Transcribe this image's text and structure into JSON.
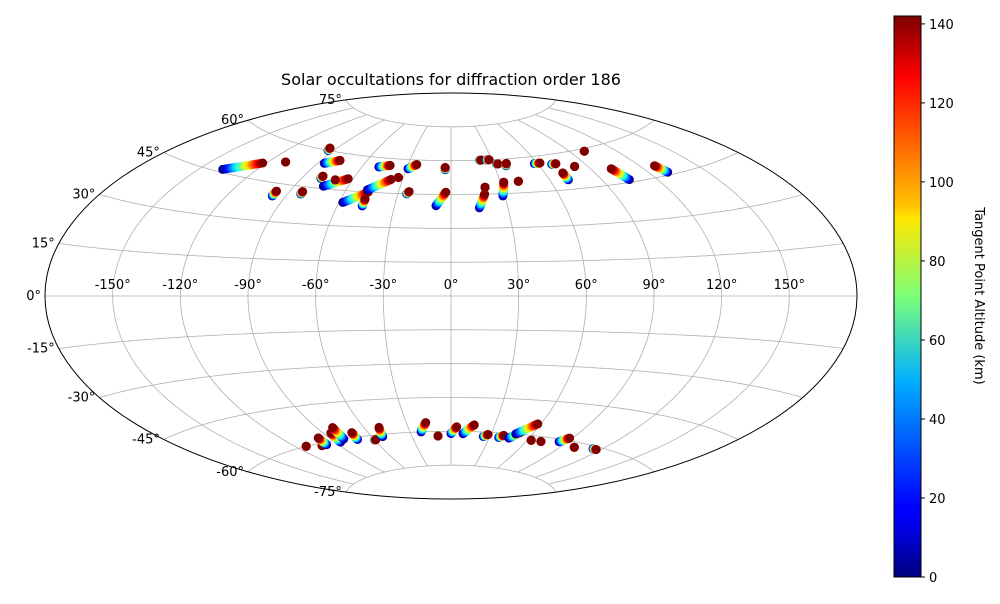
{
  "chart_data": {
    "type": "scatter",
    "title": "Solar occultations for diffraction order 186",
    "projection": "aitoff",
    "lon_tick_labels": [
      "-150°",
      "-120°",
      "-90°",
      "-60°",
      "-30°",
      "0°",
      "30°",
      "60°",
      "90°",
      "120°",
      "150°"
    ],
    "lon_ticks": [
      -150,
      -120,
      -90,
      -60,
      -30,
      0,
      30,
      60,
      90,
      120,
      150
    ],
    "lat_tick_labels": [
      "75°",
      "60°",
      "45°",
      "30°",
      "15°",
      "0°",
      "-15°",
      "-30°",
      "-45°",
      "-60°",
      "-75°"
    ],
    "lat_ticks": [
      75,
      60,
      45,
      30,
      15,
      0,
      -15,
      -30,
      -45,
      -60,
      -75
    ],
    "xlim": [
      -180,
      180
    ],
    "ylim": [
      -90,
      90
    ],
    "grid": true,
    "colorbar": {
      "label": "Tangent Point Altitude (km)",
      "range": [
        0,
        142
      ],
      "tick_values": [
        0,
        20,
        40,
        60,
        80,
        100,
        120,
        140
      ],
      "tick_labels": [
        "0",
        "20",
        "40",
        "60",
        "80",
        "100",
        "120",
        "140"
      ],
      "colormap": "jet"
    },
    "tracks": [
      {
        "start": [
          -138,
          46
        ],
        "end": [
          -122,
          51
        ]
      },
      {
        "start": [
          -110,
          53
        ],
        "end": [
          -110,
          53
        ]
      },
      {
        "start": [
          -94,
          60
        ],
        "end": [
          -95,
          61
        ]
      },
      {
        "start": [
          -97,
          40
        ],
        "end": [
          -97,
          42
        ]
      },
      {
        "start": [
          -83,
          42
        ],
        "end": [
          -83,
          43
        ]
      },
      {
        "start": [
          -86,
          55
        ],
        "end": [
          -78,
          57
        ]
      },
      {
        "start": [
          -79,
          49
        ],
        "end": [
          -79,
          50
        ]
      },
      {
        "start": [
          -74,
          46
        ],
        "end": [
          -63,
          50
        ]
      },
      {
        "start": [
          -70,
          49
        ],
        "end": [
          -70,
          49
        ]
      },
      {
        "start": [
          -58,
          40
        ],
        "end": [
          -47,
          45
        ]
      },
      {
        "start": [
          -47,
          39
        ],
        "end": [
          -47,
          42
        ]
      },
      {
        "start": [
          -48,
          46
        ],
        "end": [
          -37,
          51
        ]
      },
      {
        "start": [
          -49,
          56
        ],
        "end": [
          -42,
          57
        ]
      },
      {
        "start": [
          -33,
          52
        ],
        "end": [
          -33,
          52
        ]
      },
      {
        "start": [
          -29,
          56
        ],
        "end": [
          -24,
          58
        ]
      },
      {
        "start": [
          -25,
          45
        ],
        "end": [
          -24,
          46
        ]
      },
      {
        "start": [
          -4,
          56
        ],
        "end": [
          -4,
          57
        ]
      },
      {
        "start": [
          -8,
          40
        ],
        "end": [
          -3,
          46
        ]
      },
      {
        "start": [
          15,
          39
        ],
        "end": [
          19,
          45
        ]
      },
      {
        "start": [
          21,
          60
        ],
        "end": [
          22,
          60
        ]
      },
      {
        "start": [
          20,
          48
        ],
        "end": [
          20,
          48
        ]
      },
      {
        "start": [
          26,
          60
        ],
        "end": [
          28,
          60
        ]
      },
      {
        "start": [
          29,
          44
        ],
        "end": [
          32,
          50
        ]
      },
      {
        "start": [
          32,
          58
        ],
        "end": [
          33,
          58
        ]
      },
      {
        "start": [
          38,
          57
        ],
        "end": [
          39,
          58
        ]
      },
      {
        "start": [
          41,
          50
        ],
        "end": [
          41,
          50
        ]
      },
      {
        "start": [
          58,
          57
        ],
        "end": [
          62,
          57
        ]
      },
      {
        "start": [
          69,
          56
        ],
        "end": [
          72,
          56
        ]
      },
      {
        "start": [
          71,
          49
        ],
        "end": [
          71,
          52
        ]
      },
      {
        "start": [
          82,
          54
        ],
        "end": [
          82,
          54
        ]
      },
      {
        "start": [
          100,
          59
        ],
        "end": [
          100,
          59
        ]
      },
      {
        "start": [
          105,
          46
        ],
        "end": [
          102,
          51
        ]
      },
      {
        "start": [
          130,
          46
        ],
        "end": [
          128,
          49
        ]
      },
      {
        "start": [
          -113,
          -60
        ],
        "end": [
          -113,
          -60
        ]
      },
      {
        "start": [
          -102,
          -61
        ],
        "end": [
          -102,
          -61
        ]
      },
      {
        "start": [
          -98,
          -61
        ],
        "end": [
          -97,
          -58
        ]
      },
      {
        "start": [
          -86,
          -61
        ],
        "end": [
          -85,
          -57
        ]
      },
      {
        "start": [
          -81,
          -60
        ],
        "end": [
          -80,
          -55
        ]
      },
      {
        "start": [
          -72,
          -61
        ],
        "end": [
          -71,
          -58
        ]
      },
      {
        "start": [
          -60,
          -62
        ],
        "end": [
          -59,
          -62
        ]
      },
      {
        "start": [
          -52,
          -61
        ],
        "end": [
          -50,
          -57
        ]
      },
      {
        "start": [
          -22,
          -60
        ],
        "end": [
          -17,
          -56
        ]
      },
      {
        "start": [
          -10,
          -62
        ],
        "end": [
          -10,
          -62
        ]
      },
      {
        "start": [
          0,
          -61
        ],
        "end": [
          4,
          -58
        ]
      },
      {
        "start": [
          9,
          -61
        ],
        "end": [
          16,
          -57
        ]
      },
      {
        "start": [
          25,
          -62
        ],
        "end": [
          28,
          -61
        ]
      },
      {
        "start": [
          37,
          -62
        ],
        "end": [
          40,
          -61
        ]
      },
      {
        "start": [
          45,
          -62
        ],
        "end": [
          51,
          -59
        ]
      },
      {
        "start": [
          48,
          -60
        ],
        "end": [
          58,
          -55
        ]
      },
      {
        "start": [
          63,
          -62
        ],
        "end": [
          63,
          -62
        ]
      },
      {
        "start": [
          71,
          -62
        ],
        "end": [
          71,
          -62
        ]
      },
      {
        "start": [
          84,
          -61
        ],
        "end": [
          88,
          -59
        ]
      },
      {
        "start": [
          100,
          -62
        ],
        "end": [
          100,
          -62
        ]
      },
      {
        "start": [
          114,
          -61
        ],
        "end": [
          117,
          -61
        ]
      }
    ]
  }
}
